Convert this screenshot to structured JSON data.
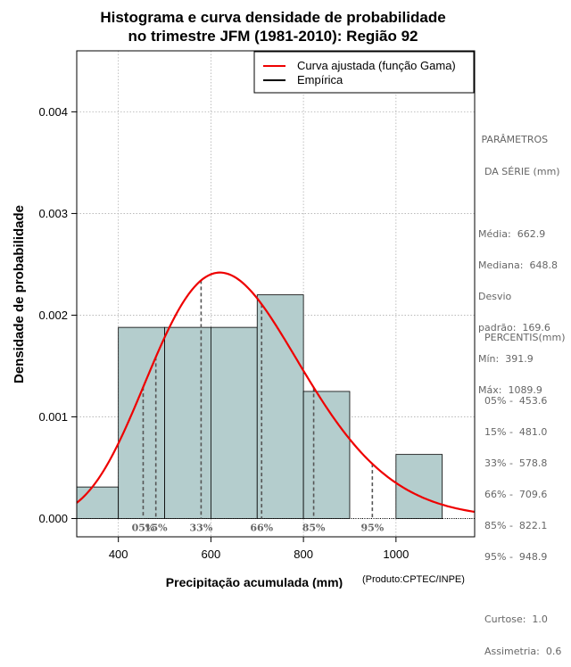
{
  "chart_data": {
    "type": "histogram",
    "title_lines": [
      "Histograma e curva densidade de probabilidade",
      "no trimestre JFM (1981-2010): Região 92"
    ],
    "xlabel": "Precipitação acumulada (mm)",
    "ylabel": "Densidade de probabilidade",
    "credit": "(Produto:CPTEC/INPE)",
    "xlim": [
      310,
      1170
    ],
    "ylim": [
      -0.00018,
      0.0046
    ],
    "x_ticks": [
      400,
      600,
      800,
      1000
    ],
    "x_tick_labels": [
      "400",
      "600",
      "800",
      "1000"
    ],
    "y_ticks": [
      0.0,
      0.001,
      0.002,
      0.003,
      0.004
    ],
    "y_tick_labels": [
      "0.000",
      "0.001",
      "0.002",
      "0.003",
      "0.004"
    ],
    "grid": true,
    "bins": [
      {
        "start": 300,
        "end": 400,
        "density": 0.00031
      },
      {
        "start": 400,
        "end": 500,
        "density": 0.00188
      },
      {
        "start": 500,
        "end": 600,
        "density": 0.00188
      },
      {
        "start": 600,
        "end": 700,
        "density": 0.00188
      },
      {
        "start": 700,
        "end": 800,
        "density": 0.0022
      },
      {
        "start": 800,
        "end": 900,
        "density": 0.00125
      },
      {
        "start": 900,
        "end": 1000,
        "density": 0.0
      },
      {
        "start": 1000,
        "end": 1100,
        "density": 0.00063
      }
    ],
    "gamma_fit": {
      "mean": 662.9,
      "sd": 169.6
    },
    "percentile_markers": [
      {
        "label": "05%",
        "value": 453.6
      },
      {
        "label": "15%",
        "value": 481.0
      },
      {
        "label": "33%",
        "value": 578.8
      },
      {
        "label": "66%",
        "value": 709.6
      },
      {
        "label": "85%",
        "value": 822.1
      },
      {
        "label": "95%",
        "value": 948.9
      }
    ],
    "legend": {
      "position": "top-right",
      "entries": [
        {
          "label": "Curva ajustada (função Gama)",
          "color": "#ee0000"
        },
        {
          "label": "Empírica",
          "color": "#000000"
        }
      ]
    },
    "colors": {
      "bar_fill": "#b4cdcd",
      "curve": "#ee0000",
      "grid": "#b0b0b0",
      "marker": "#555555",
      "panel_text": "#666666"
    }
  },
  "side_panel": {
    "params_lines": [
      " PARÂMETROS",
      "  DA SÉRIE (mm)",
      "",
      "Média:  662.9",
      "Mediana:  648.8",
      "Desvio",
      "padrão:  169.6",
      "Mín:  391.9",
      "Máx:  1089.9"
    ],
    "percentis_lines": [
      "  PERCENTIS(mm)",
      "",
      "  05% -  453.6",
      "  15% -  481.0",
      "  33% -  578.8",
      "  66% -  709.6",
      "  85% -  822.1",
      "  95% -  948.9",
      "",
      "  Curtose:  1.0",
      "  Assimetria:  0.6"
    ]
  }
}
